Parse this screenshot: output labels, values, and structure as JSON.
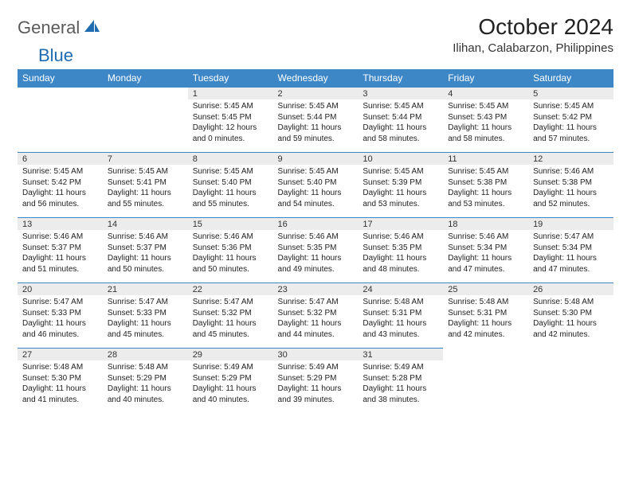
{
  "brand": {
    "word1": "General",
    "word2": "Blue"
  },
  "title": "October 2024",
  "location": "Ilihan, Calabarzon, Philippines",
  "colors": {
    "header_bg": "#3d87c7",
    "header_text": "#ffffff",
    "daynum_bg": "#ececec",
    "row_border": "#3d87c7",
    "logo_gray": "#6a6a6a",
    "logo_blue": "#1f6bb0"
  },
  "weekdays": [
    "Sunday",
    "Monday",
    "Tuesday",
    "Wednesday",
    "Thursday",
    "Friday",
    "Saturday"
  ],
  "layout": {
    "first_weekday_index": 2,
    "days_in_month": 31,
    "weeks": 5
  },
  "field_labels": {
    "sunrise": "Sunrise:",
    "sunset": "Sunset:",
    "daylight": "Daylight:"
  },
  "days": {
    "1": {
      "sunrise": "5:45 AM",
      "sunset": "5:45 PM",
      "daylight": "12 hours and 0 minutes."
    },
    "2": {
      "sunrise": "5:45 AM",
      "sunset": "5:44 PM",
      "daylight": "11 hours and 59 minutes."
    },
    "3": {
      "sunrise": "5:45 AM",
      "sunset": "5:44 PM",
      "daylight": "11 hours and 58 minutes."
    },
    "4": {
      "sunrise": "5:45 AM",
      "sunset": "5:43 PM",
      "daylight": "11 hours and 58 minutes."
    },
    "5": {
      "sunrise": "5:45 AM",
      "sunset": "5:42 PM",
      "daylight": "11 hours and 57 minutes."
    },
    "6": {
      "sunrise": "5:45 AM",
      "sunset": "5:42 PM",
      "daylight": "11 hours and 56 minutes."
    },
    "7": {
      "sunrise": "5:45 AM",
      "sunset": "5:41 PM",
      "daylight": "11 hours and 55 minutes."
    },
    "8": {
      "sunrise": "5:45 AM",
      "sunset": "5:40 PM",
      "daylight": "11 hours and 55 minutes."
    },
    "9": {
      "sunrise": "5:45 AM",
      "sunset": "5:40 PM",
      "daylight": "11 hours and 54 minutes."
    },
    "10": {
      "sunrise": "5:45 AM",
      "sunset": "5:39 PM",
      "daylight": "11 hours and 53 minutes."
    },
    "11": {
      "sunrise": "5:45 AM",
      "sunset": "5:38 PM",
      "daylight": "11 hours and 53 minutes."
    },
    "12": {
      "sunrise": "5:46 AM",
      "sunset": "5:38 PM",
      "daylight": "11 hours and 52 minutes."
    },
    "13": {
      "sunrise": "5:46 AM",
      "sunset": "5:37 PM",
      "daylight": "11 hours and 51 minutes."
    },
    "14": {
      "sunrise": "5:46 AM",
      "sunset": "5:37 PM",
      "daylight": "11 hours and 50 minutes."
    },
    "15": {
      "sunrise": "5:46 AM",
      "sunset": "5:36 PM",
      "daylight": "11 hours and 50 minutes."
    },
    "16": {
      "sunrise": "5:46 AM",
      "sunset": "5:35 PM",
      "daylight": "11 hours and 49 minutes."
    },
    "17": {
      "sunrise": "5:46 AM",
      "sunset": "5:35 PM",
      "daylight": "11 hours and 48 minutes."
    },
    "18": {
      "sunrise": "5:46 AM",
      "sunset": "5:34 PM",
      "daylight": "11 hours and 47 minutes."
    },
    "19": {
      "sunrise": "5:47 AM",
      "sunset": "5:34 PM",
      "daylight": "11 hours and 47 minutes."
    },
    "20": {
      "sunrise": "5:47 AM",
      "sunset": "5:33 PM",
      "daylight": "11 hours and 46 minutes."
    },
    "21": {
      "sunrise": "5:47 AM",
      "sunset": "5:33 PM",
      "daylight": "11 hours and 45 minutes."
    },
    "22": {
      "sunrise": "5:47 AM",
      "sunset": "5:32 PM",
      "daylight": "11 hours and 45 minutes."
    },
    "23": {
      "sunrise": "5:47 AM",
      "sunset": "5:32 PM",
      "daylight": "11 hours and 44 minutes."
    },
    "24": {
      "sunrise": "5:48 AM",
      "sunset": "5:31 PM",
      "daylight": "11 hours and 43 minutes."
    },
    "25": {
      "sunrise": "5:48 AM",
      "sunset": "5:31 PM",
      "daylight": "11 hours and 42 minutes."
    },
    "26": {
      "sunrise": "5:48 AM",
      "sunset": "5:30 PM",
      "daylight": "11 hours and 42 minutes."
    },
    "27": {
      "sunrise": "5:48 AM",
      "sunset": "5:30 PM",
      "daylight": "11 hours and 41 minutes."
    },
    "28": {
      "sunrise": "5:48 AM",
      "sunset": "5:29 PM",
      "daylight": "11 hours and 40 minutes."
    },
    "29": {
      "sunrise": "5:49 AM",
      "sunset": "5:29 PM",
      "daylight": "11 hours and 40 minutes."
    },
    "30": {
      "sunrise": "5:49 AM",
      "sunset": "5:29 PM",
      "daylight": "11 hours and 39 minutes."
    },
    "31": {
      "sunrise": "5:49 AM",
      "sunset": "5:28 PM",
      "daylight": "11 hours and 38 minutes."
    }
  }
}
